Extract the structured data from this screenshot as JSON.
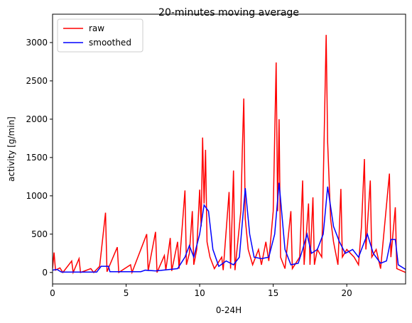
{
  "chart_data": {
    "type": "line",
    "title": "20-minutes moving average",
    "xlabel": "0-24H",
    "ylabel": "activity [g/min]",
    "xlim": [
      0,
      24
    ],
    "ylim": [
      -150,
      3370
    ],
    "xticks": [
      0,
      5,
      10,
      15,
      20
    ],
    "yticks": [
      0,
      500,
      1000,
      1500,
      2000,
      2500,
      3000
    ],
    "legend": "upper left",
    "grid": false,
    "series": [
      {
        "name": "raw",
        "color": "#ff0000",
        "x": [
          0,
          0.1,
          0.2,
          0.5,
          0.7,
          1.3,
          1.4,
          1.8,
          1.9,
          2.6,
          2.8,
          3.2,
          3.6,
          3.7,
          4.4,
          4.5,
          5.3,
          5.4,
          6.4,
          6.5,
          7.0,
          7.1,
          7.6,
          7.7,
          8.0,
          8.1,
          8.5,
          8.6,
          9.0,
          9.1,
          9.3,
          9.5,
          9.6,
          9.8,
          10.0,
          10.1,
          10.2,
          10.3,
          10.4,
          10.5,
          10.7,
          11.0,
          11.5,
          11.6,
          12.0,
          12.1,
          12.3,
          12.4,
          12.8,
          12.9,
          13.0,
          13.1,
          13.3,
          13.6,
          14.0,
          14.2,
          14.5,
          14.7,
          15.0,
          15.2,
          15.3,
          15.4,
          15.5,
          15.8,
          16.2,
          16.3,
          16.8,
          17.0,
          17.1,
          17.4,
          17.5,
          17.7,
          17.8,
          18.0,
          18.3,
          18.6,
          18.7,
          18.9,
          19.1,
          19.4,
          19.6,
          19.7,
          20.0,
          20.5,
          20.8,
          21.0,
          21.2,
          21.3,
          21.6,
          21.7,
          22.0,
          22.3,
          22.9,
          23.0,
          23.3,
          23.4,
          24
        ],
        "values": [
          50,
          260,
          30,
          60,
          0,
          150,
          0,
          180,
          0,
          50,
          0,
          80,
          780,
          10,
          330,
          0,
          100,
          0,
          500,
          20,
          530,
          0,
          220,
          30,
          450,
          20,
          400,
          50,
          1070,
          100,
          250,
          800,
          100,
          300,
          1080,
          600,
          1760,
          900,
          1600,
          400,
          200,
          50,
          200,
          30,
          1050,
          50,
          1330,
          30,
          800,
          1600,
          2270,
          700,
          300,
          100,
          300,
          100,
          400,
          150,
          800,
          2740,
          800,
          2000,
          200,
          50,
          800,
          50,
          200,
          1200,
          100,
          900,
          100,
          980,
          100,
          300,
          200,
          3100,
          1700,
          700,
          400,
          100,
          1090,
          200,
          300,
          200,
          100,
          600,
          1480,
          300,
          1200,
          200,
          300,
          50,
          1290,
          200,
          850,
          50,
          0
        ]
      },
      {
        "name": "smoothed",
        "color": "#0000ff",
        "x": [
          0,
          0.3,
          0.6,
          3,
          3.3,
          3.8,
          3.9,
          6,
          6.3,
          7,
          8,
          8.5,
          9,
          9.3,
          9.6,
          10,
          10.3,
          10.6,
          10.9,
          11.3,
          11.8,
          12.3,
          12.7,
          13.1,
          13.4,
          13.7,
          14.2,
          14.7,
          15.1,
          15.4,
          15.8,
          16.2,
          16.7,
          17,
          17.3,
          17.6,
          18,
          18.4,
          18.7,
          19.1,
          19.5,
          19.9,
          20.4,
          20.8,
          21.4,
          21.8,
          22.3,
          22.7,
          23.0,
          23.3,
          23.5,
          24
        ],
        "values": [
          30,
          40,
          5,
          5,
          80,
          80,
          10,
          10,
          30,
          20,
          40,
          50,
          200,
          350,
          200,
          500,
          880,
          800,
          300,
          80,
          150,
          100,
          200,
          1100,
          500,
          200,
          180,
          200,
          500,
          1170,
          300,
          100,
          120,
          300,
          500,
          250,
          300,
          500,
          1120,
          600,
          400,
          250,
          300,
          200,
          500,
          250,
          120,
          150,
          430,
          430,
          100,
          40
        ]
      }
    ]
  }
}
